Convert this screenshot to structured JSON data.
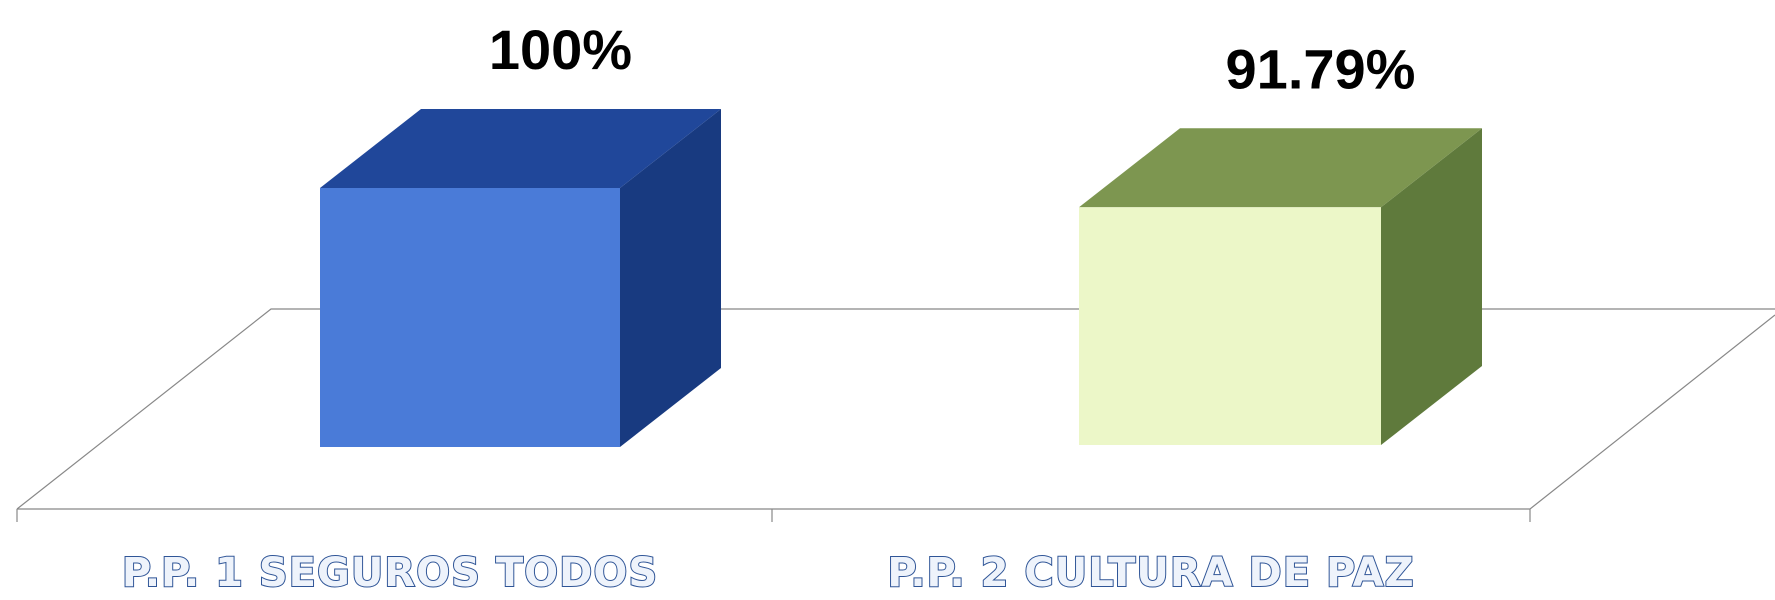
{
  "chart_data": {
    "type": "bar3d",
    "categories": [
      "P.P. 1 SEGUROS TODOS",
      "P.P. 2 CULTURA DE PAZ"
    ],
    "values": [
      100,
      91.79
    ],
    "value_labels": [
      "100%",
      "91.79%"
    ],
    "colors": [
      {
        "front": "#4a7bd8",
        "top": "#20479a",
        "side": "#183a80"
      },
      {
        "front": "#ecf7c8",
        "top": "#7d9650",
        "side": "#5f7a3c"
      }
    ]
  }
}
